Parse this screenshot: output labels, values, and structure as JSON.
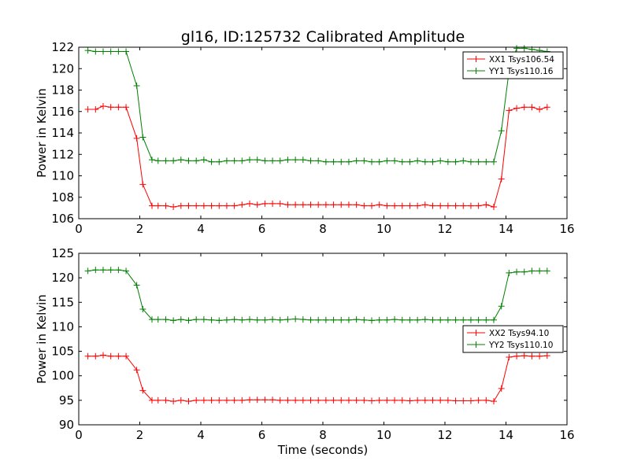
{
  "figure": {
    "title": "gl16, ID:125732 Calibrated Amplitude"
  },
  "chart_data": [
    {
      "type": "line",
      "title": "gl16, ID:125732 Calibrated Amplitude",
      "xlabel": "",
      "ylabel": "Power in Kelvin",
      "xlim": [
        0,
        16
      ],
      "ylim": [
        106,
        122
      ],
      "xticks": [
        0,
        2,
        4,
        6,
        8,
        10,
        12,
        14,
        16
      ],
      "yticks": [
        106,
        108,
        110,
        112,
        114,
        116,
        118,
        120,
        122
      ],
      "grid": false,
      "legend_position": "top-right",
      "x": [
        0.3,
        0.55,
        0.8,
        1.05,
        1.3,
        1.55,
        1.9,
        2.1,
        2.4,
        2.6,
        2.85,
        3.1,
        3.35,
        3.6,
        3.85,
        4.1,
        4.35,
        4.6,
        4.85,
        5.1,
        5.35,
        5.6,
        5.85,
        6.1,
        6.35,
        6.6,
        6.85,
        7.1,
        7.35,
        7.6,
        7.85,
        8.1,
        8.35,
        8.6,
        8.85,
        9.1,
        9.35,
        9.6,
        9.85,
        10.1,
        10.35,
        10.6,
        10.85,
        11.1,
        11.35,
        11.6,
        11.85,
        12.1,
        12.35,
        12.6,
        12.85,
        13.1,
        13.35,
        13.6,
        13.85,
        14.1,
        14.35,
        14.6,
        14.85,
        15.1,
        15.35
      ],
      "series": [
        {
          "name": "XX1 Tsys106.54",
          "color": "#ff0000",
          "values": [
            116.2,
            116.2,
            116.5,
            116.4,
            116.4,
            116.4,
            113.5,
            109.2,
            107.2,
            107.2,
            107.2,
            107.1,
            107.2,
            107.2,
            107.2,
            107.2,
            107.2,
            107.2,
            107.2,
            107.2,
            107.3,
            107.4,
            107.3,
            107.4,
            107.4,
            107.4,
            107.3,
            107.3,
            107.3,
            107.3,
            107.3,
            107.3,
            107.3,
            107.3,
            107.3,
            107.3,
            107.2,
            107.2,
            107.3,
            107.2,
            107.2,
            107.2,
            107.2,
            107.2,
            107.3,
            107.2,
            107.2,
            107.2,
            107.2,
            107.2,
            107.2,
            107.2,
            107.3,
            107.1,
            109.7,
            116.1,
            116.3,
            116.4,
            116.4,
            116.2,
            116.4
          ]
        },
        {
          "name": "YY1 Tsys110.16",
          "color": "#008000",
          "values": [
            121.7,
            121.6,
            121.6,
            121.6,
            121.6,
            121.6,
            118.4,
            113.6,
            111.5,
            111.4,
            111.4,
            111.4,
            111.5,
            111.4,
            111.4,
            111.5,
            111.3,
            111.3,
            111.4,
            111.4,
            111.4,
            111.5,
            111.5,
            111.4,
            111.4,
            111.4,
            111.5,
            111.5,
            111.5,
            111.4,
            111.4,
            111.3,
            111.3,
            111.3,
            111.3,
            111.4,
            111.4,
            111.3,
            111.3,
            111.4,
            111.4,
            111.3,
            111.3,
            111.4,
            111.3,
            111.3,
            111.4,
            111.3,
            111.3,
            111.4,
            111.3,
            111.3,
            111.3,
            111.3,
            114.2,
            119.8,
            121.9,
            121.9,
            121.8,
            121.7,
            121.6
          ]
        }
      ]
    },
    {
      "type": "line",
      "title": "",
      "xlabel": "Time (seconds)",
      "ylabel": "Power in Kelvin",
      "xlim": [
        0,
        16
      ],
      "ylim": [
        90,
        125
      ],
      "xticks": [
        0,
        2,
        4,
        6,
        8,
        10,
        12,
        14,
        16
      ],
      "yticks": [
        90,
        95,
        100,
        105,
        110,
        115,
        120,
        125
      ],
      "grid": false,
      "legend_position": "center-right",
      "x": [
        0.3,
        0.55,
        0.8,
        1.05,
        1.3,
        1.55,
        1.9,
        2.1,
        2.4,
        2.6,
        2.85,
        3.1,
        3.35,
        3.6,
        3.85,
        4.1,
        4.35,
        4.6,
        4.85,
        5.1,
        5.35,
        5.6,
        5.85,
        6.1,
        6.35,
        6.6,
        6.85,
        7.1,
        7.35,
        7.6,
        7.85,
        8.1,
        8.35,
        8.6,
        8.85,
        9.1,
        9.35,
        9.6,
        9.85,
        10.1,
        10.35,
        10.6,
        10.85,
        11.1,
        11.35,
        11.6,
        11.85,
        12.1,
        12.35,
        12.6,
        12.85,
        13.1,
        13.35,
        13.6,
        13.85,
        14.1,
        14.35,
        14.6,
        14.85,
        15.1,
        15.35
      ],
      "series": [
        {
          "name": "XX2 Tsys94.10",
          "color": "#ff0000",
          "values": [
            104.0,
            104.0,
            104.2,
            104.0,
            104.0,
            104.0,
            101.2,
            97.0,
            95.0,
            95.0,
            95.0,
            94.8,
            95.0,
            94.8,
            95.0,
            95.0,
            95.0,
            95.0,
            95.0,
            95.0,
            95.0,
            95.1,
            95.1,
            95.1,
            95.1,
            95.0,
            95.0,
            95.0,
            95.0,
            95.0,
            95.0,
            95.0,
            95.0,
            95.0,
            95.0,
            95.0,
            95.0,
            94.9,
            95.0,
            95.0,
            95.0,
            95.0,
            94.9,
            95.0,
            95.0,
            95.0,
            95.0,
            95.0,
            94.9,
            94.9,
            94.9,
            95.0,
            95.0,
            94.8,
            97.4,
            103.8,
            104.0,
            104.1,
            104.0,
            104.0,
            104.1
          ]
        },
        {
          "name": "YY2 Tsys110.10",
          "color": "#008000",
          "values": [
            121.4,
            121.6,
            121.6,
            121.6,
            121.6,
            121.4,
            118.5,
            113.6,
            111.5,
            111.5,
            111.5,
            111.3,
            111.5,
            111.3,
            111.5,
            111.5,
            111.4,
            111.3,
            111.4,
            111.5,
            111.4,
            111.5,
            111.4,
            111.4,
            111.5,
            111.4,
            111.5,
            111.6,
            111.5,
            111.4,
            111.4,
            111.4,
            111.4,
            111.4,
            111.4,
            111.5,
            111.4,
            111.3,
            111.4,
            111.4,
            111.5,
            111.4,
            111.4,
            111.4,
            111.5,
            111.4,
            111.4,
            111.4,
            111.4,
            111.4,
            111.4,
            111.4,
            111.4,
            111.4,
            114.2,
            121.0,
            121.2,
            121.2,
            121.4,
            121.4,
            121.4
          ]
        }
      ]
    }
  ]
}
